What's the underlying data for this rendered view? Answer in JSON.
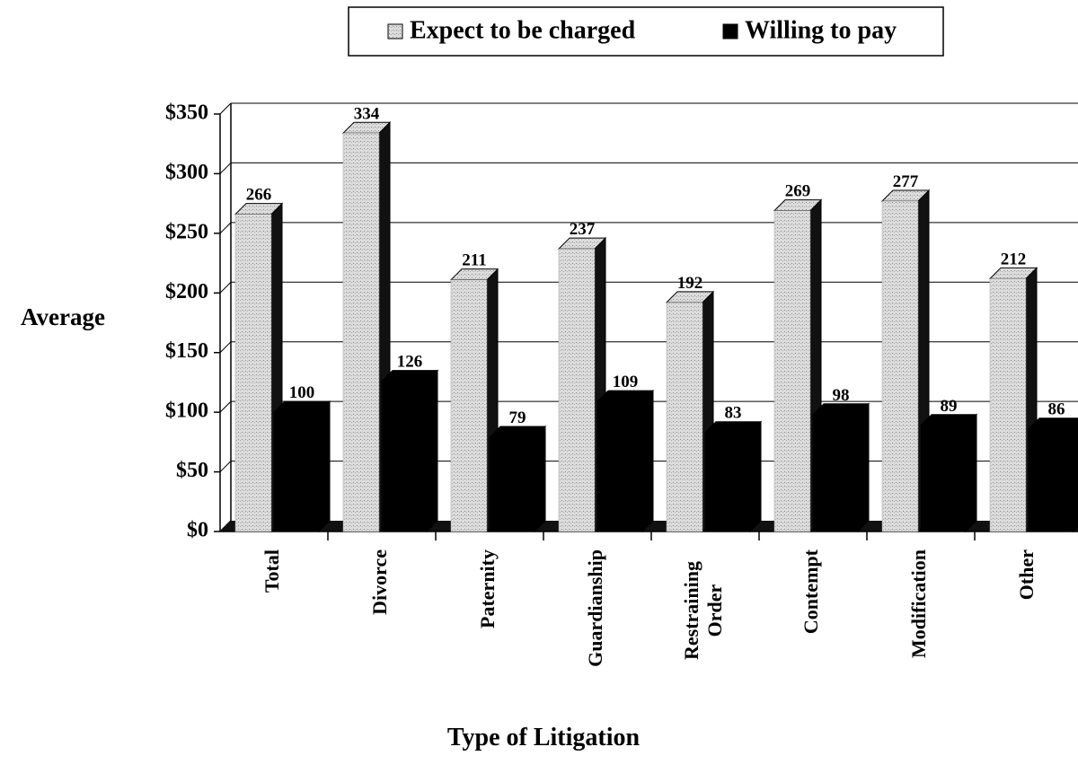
{
  "chart_data": {
    "type": "bar3d",
    "x_label": "Type of Litigation",
    "y_label": "Average",
    "categories": [
      "Total",
      "Divorce",
      "Paternity",
      "Guardianship",
      "Restraining Order",
      "Contempt",
      "Modification",
      "Other"
    ],
    "series": [
      {
        "name": "Expect to be charged",
        "color": "#d6d6d6",
        "values": [
          266,
          334,
          211,
          237,
          192,
          269,
          277,
          212
        ]
      },
      {
        "name": "Willing to pay",
        "color": "#000000",
        "values": [
          100,
          126,
          79,
          109,
          83,
          98,
          89,
          86
        ]
      }
    ],
    "ylim": [
      0,
      350
    ],
    "yticks": [
      {
        "value": 0,
        "label": "$0"
      },
      {
        "value": 50,
        "label": "$50"
      },
      {
        "value": 100,
        "label": "$100"
      },
      {
        "value": 150,
        "label": "$150"
      },
      {
        "value": 200,
        "label": "$200"
      },
      {
        "value": 250,
        "label": "$250"
      },
      {
        "value": 300,
        "label": "$300"
      },
      {
        "value": 350,
        "label": "$350"
      }
    ],
    "grid": true
  }
}
